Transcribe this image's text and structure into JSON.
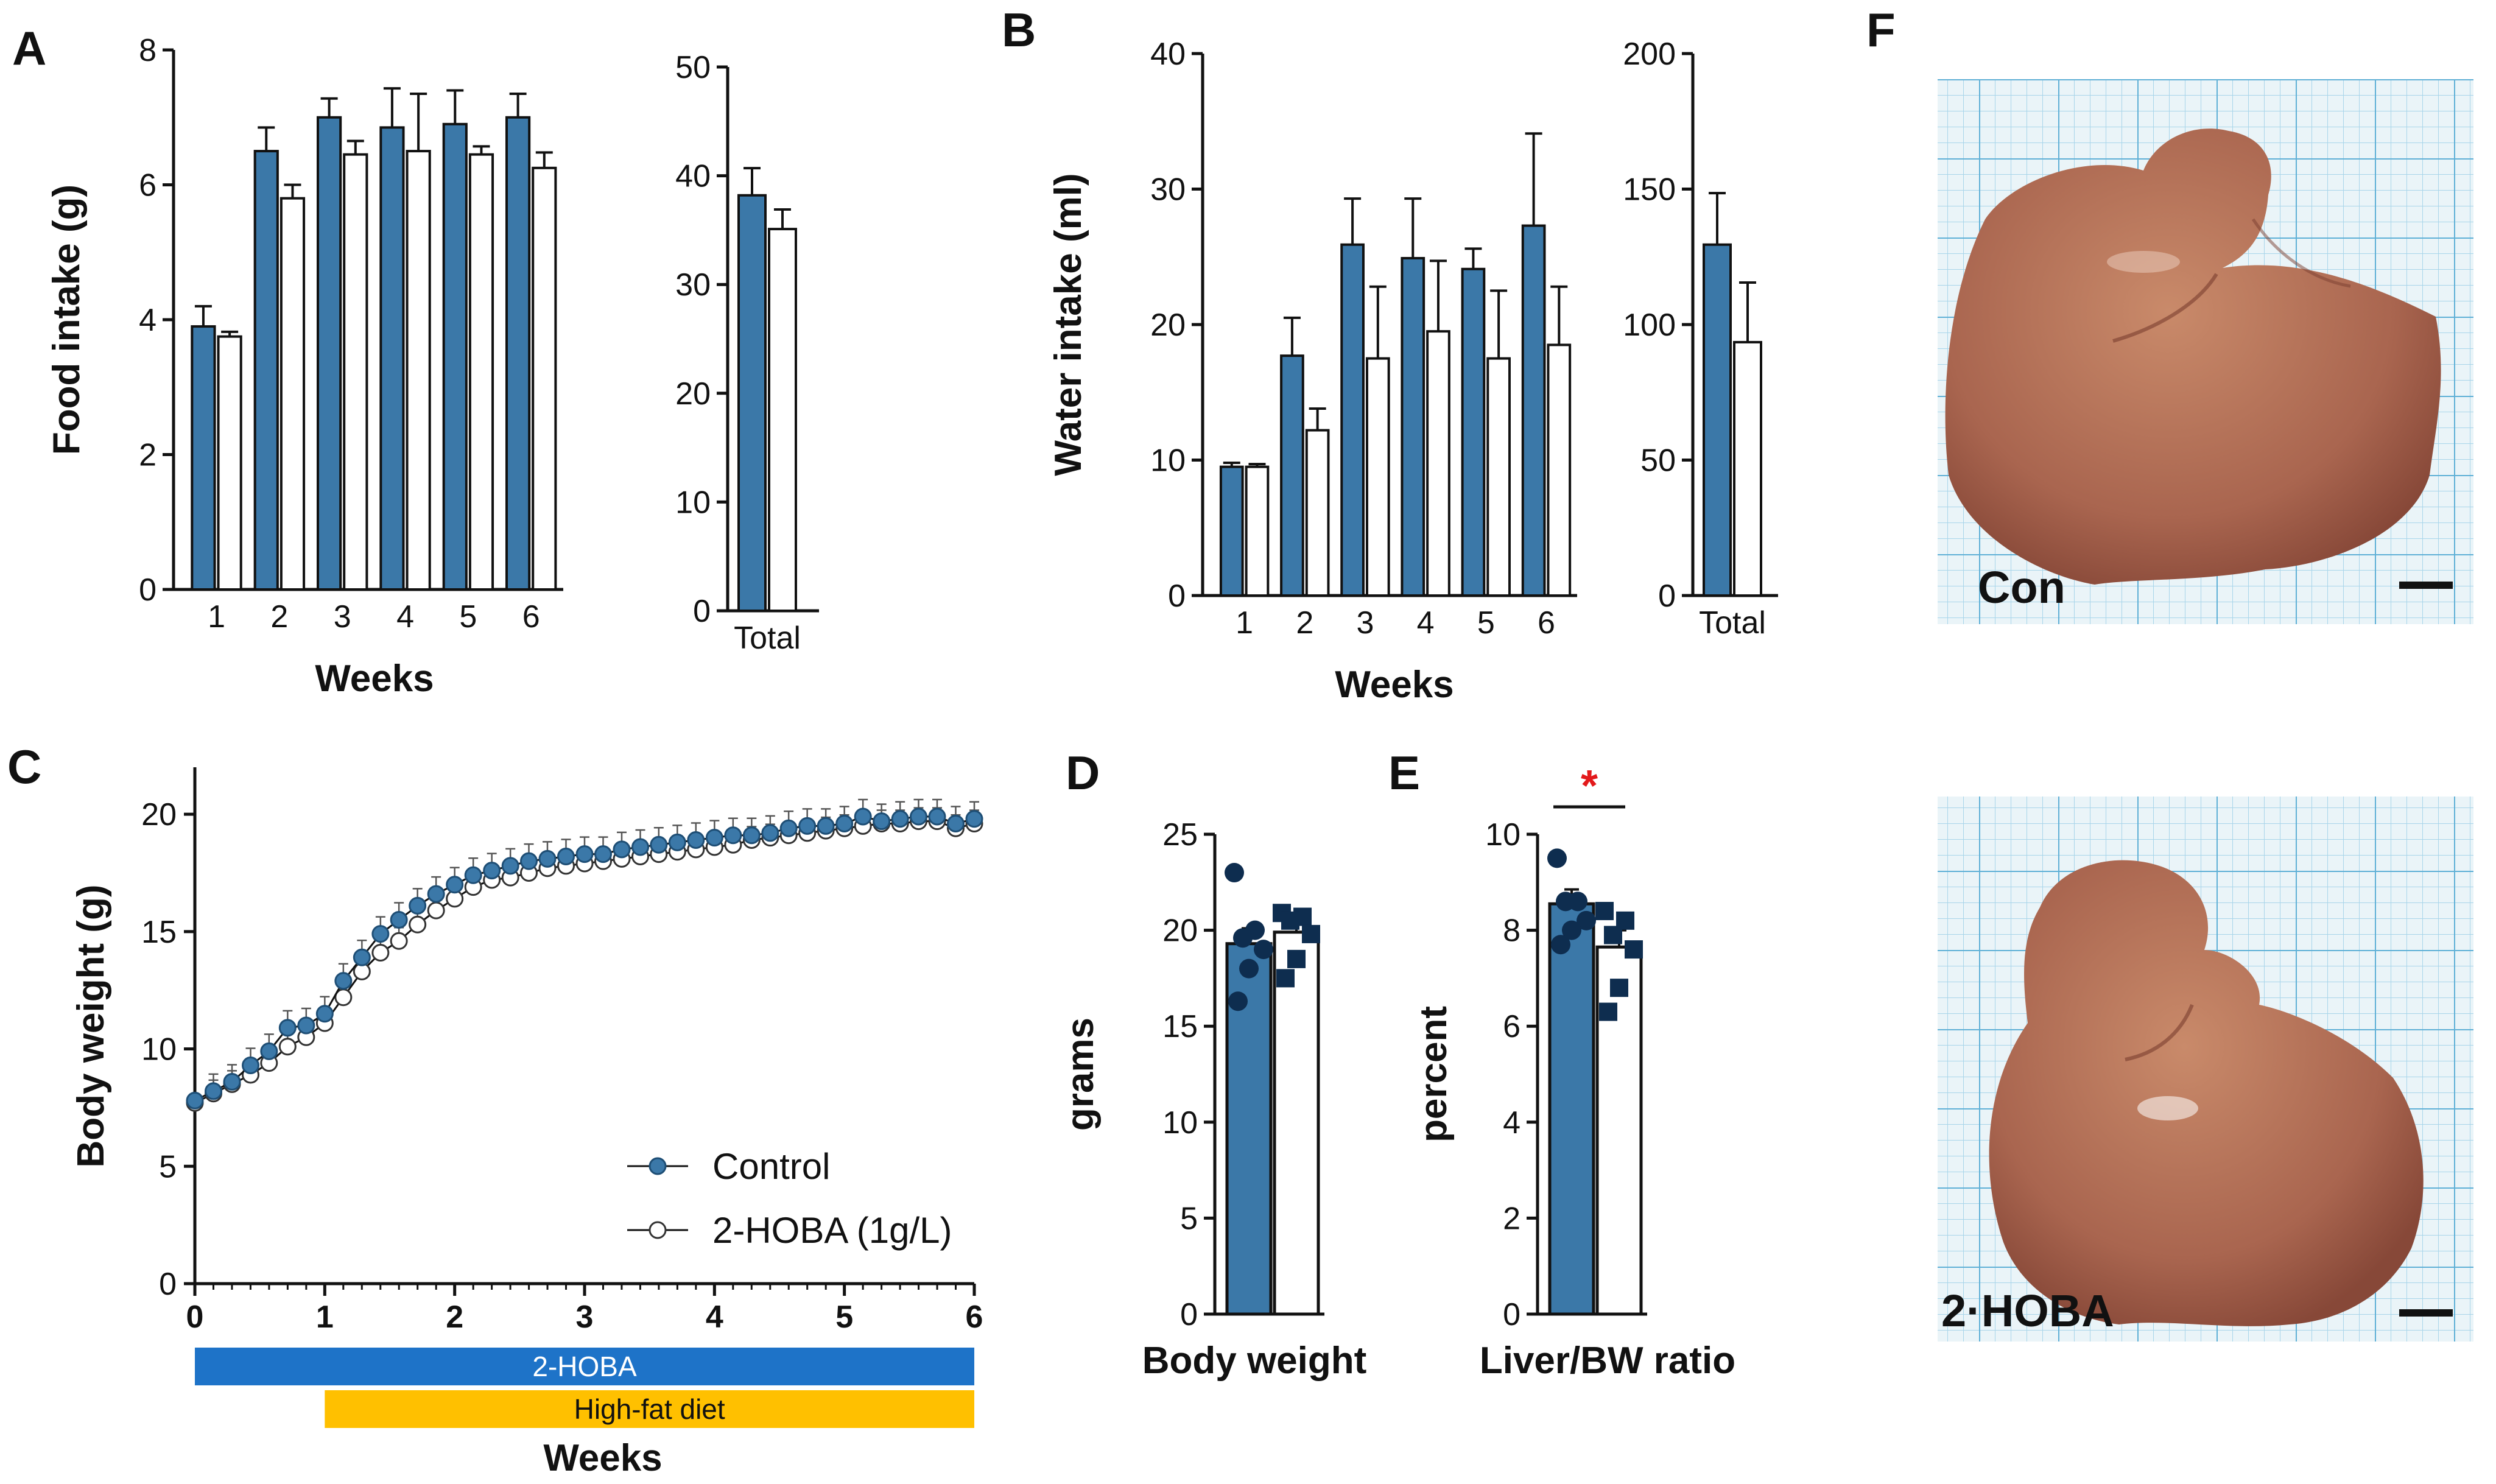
{
  "figure": {
    "panels": {
      "A": "A",
      "B": "B",
      "C": "C",
      "D": "D",
      "E": "E",
      "F": "F"
    }
  },
  "colors": {
    "control": "#3B78A8",
    "treated": "#FFFFFF",
    "axis": "#111111",
    "hoba_bar": "#1E73C8",
    "hfd_bar": "#FFC000",
    "significance": "#E3191B",
    "dark_points": "#0E2D4F",
    "grid_paper": "#D9ECF5",
    "grid_line": "#7FC0DD",
    "liver": "#A9654F"
  },
  "chart_data": [
    {
      "id": "A-weekly",
      "type": "bar",
      "ylabel": "Food intake (g)",
      "xlabel": "Weeks",
      "ylim": [
        0,
        8
      ],
      "yticks": [
        0,
        2,
        4,
        6,
        8
      ],
      "categories": [
        "1",
        "2",
        "3",
        "4",
        "5",
        "6"
      ],
      "series": [
        {
          "name": "Control",
          "values": [
            3.9,
            6.5,
            7.0,
            6.85,
            6.9,
            7.0
          ],
          "errors": [
            0.3,
            0.35,
            0.28,
            0.58,
            0.5,
            0.35
          ]
        },
        {
          "name": "2-HOBA (1g/L)",
          "values": [
            3.75,
            5.8,
            6.45,
            6.5,
            6.45,
            6.25
          ],
          "errors": [
            0.07,
            0.2,
            0.2,
            0.85,
            0.12,
            0.23
          ]
        }
      ]
    },
    {
      "id": "A-total",
      "type": "bar",
      "ylim": [
        0,
        50
      ],
      "yticks": [
        0,
        10,
        20,
        30,
        40,
        50
      ],
      "categories": [
        "Total"
      ],
      "series": [
        {
          "name": "Control",
          "values": [
            38.2
          ],
          "errors": [
            2.5
          ]
        },
        {
          "name": "2-HOBA (1g/L)",
          "values": [
            35.1
          ],
          "errors": [
            1.8
          ]
        }
      ]
    },
    {
      "id": "B-weekly",
      "type": "bar",
      "ylabel": "Water intake (ml)",
      "xlabel": "Weeks",
      "ylim": [
        0,
        40
      ],
      "yticks": [
        0,
        10,
        20,
        30,
        40
      ],
      "categories": [
        "1",
        "2",
        "3",
        "4",
        "5",
        "6"
      ],
      "series": [
        {
          "name": "Control",
          "values": [
            9.5,
            17.7,
            25.9,
            24.9,
            24.1,
            27.3
          ],
          "errors": [
            0.3,
            2.8,
            3.4,
            4.4,
            1.5,
            6.8
          ]
        },
        {
          "name": "2-HOBA (1g/L)",
          "values": [
            9.5,
            12.2,
            17.5,
            19.5,
            17.5,
            18.5
          ],
          "errors": [
            0.2,
            1.6,
            5.3,
            5.2,
            5.0,
            4.3
          ]
        }
      ]
    },
    {
      "id": "B-total",
      "type": "bar",
      "ylim": [
        0,
        200
      ],
      "yticks": [
        0,
        50,
        100,
        150,
        200
      ],
      "categories": [
        "Total"
      ],
      "series": [
        {
          "name": "Control",
          "values": [
            129.5
          ],
          "errors": [
            19
          ]
        },
        {
          "name": "2-HOBA (1g/L)",
          "values": [
            93.5
          ],
          "errors": [
            22
          ]
        }
      ]
    },
    {
      "id": "C",
      "type": "line",
      "ylabel": "Body weight (g)",
      "xlabel": "Weeks",
      "ylim": [
        0,
        22
      ],
      "yticks": [
        0,
        5,
        10,
        15,
        20
      ],
      "xlim": [
        0,
        6
      ],
      "xticks": [
        0,
        1,
        2,
        3,
        4,
        5,
        6
      ],
      "x": [
        0,
        0.143,
        0.286,
        0.429,
        0.571,
        0.714,
        0.857,
        1.0,
        1.143,
        1.286,
        1.429,
        1.571,
        1.714,
        1.857,
        2.0,
        2.143,
        2.286,
        2.429,
        2.571,
        2.714,
        2.857,
        3.0,
        3.143,
        3.286,
        3.429,
        3.571,
        3.714,
        3.857,
        4.0,
        4.143,
        4.286,
        4.429,
        4.571,
        4.714,
        4.857,
        5.0,
        5.143,
        5.286,
        5.429,
        5.571,
        5.714,
        5.857,
        6.0
      ],
      "series": [
        {
          "name": "Control",
          "values": [
            7.8,
            8.2,
            8.6,
            9.3,
            9.9,
            10.9,
            11.0,
            11.5,
            12.9,
            13.9,
            14.9,
            15.5,
            16.1,
            16.6,
            17.0,
            17.4,
            17.6,
            17.8,
            18.0,
            18.1,
            18.2,
            18.3,
            18.3,
            18.5,
            18.6,
            18.7,
            18.8,
            18.9,
            19.0,
            19.1,
            19.1,
            19.2,
            19.4,
            19.5,
            19.5,
            19.6,
            19.9,
            19.7,
            19.8,
            19.9,
            19.9,
            19.6,
            19.8
          ]
        },
        {
          "name": "2-HOBA (1g/L)",
          "values": [
            7.7,
            8.1,
            8.5,
            8.9,
            9.4,
            10.1,
            10.5,
            11.1,
            12.2,
            13.3,
            14.1,
            14.6,
            15.3,
            15.9,
            16.4,
            16.9,
            17.2,
            17.3,
            17.5,
            17.7,
            17.8,
            17.9,
            18.0,
            18.1,
            18.2,
            18.3,
            18.4,
            18.5,
            18.6,
            18.7,
            18.9,
            19.0,
            19.1,
            19.2,
            19.3,
            19.4,
            19.5,
            19.6,
            19.6,
            19.7,
            19.7,
            19.4,
            19.6
          ]
        }
      ],
      "legend": "bottom-right",
      "timeline": [
        {
          "label": "2-HOBA",
          "start": 0,
          "end": 6
        },
        {
          "label": "High-fat diet",
          "start": 1,
          "end": 6
        }
      ]
    },
    {
      "id": "D",
      "type": "bar",
      "ylabel": "grams",
      "xlabel": "Body weight",
      "ylim": [
        0,
        25
      ],
      "yticks": [
        0,
        5,
        10,
        15,
        20,
        25
      ],
      "series": [
        {
          "name": "Control",
          "value": 19.3,
          "error": 0.8,
          "points": [
            23.0,
            20.0,
            19.6,
            19.0,
            18.0,
            16.3
          ]
        },
        {
          "name": "2-HOBA (1g/L)",
          "value": 19.9,
          "error": 0.6,
          "points": [
            20.9,
            20.7,
            20.5,
            19.8,
            18.5,
            17.5
          ]
        }
      ]
    },
    {
      "id": "E",
      "type": "bar",
      "ylabel": "percent",
      "xlabel": "Liver/BW ratio",
      "ylim": [
        0,
        10
      ],
      "yticks": [
        0,
        2,
        4,
        6,
        8,
        10
      ],
      "series": [
        {
          "name": "Control",
          "value": 8.55,
          "error": 0.3,
          "points": [
            9.5,
            8.6,
            8.6,
            8.2,
            8.0,
            7.7
          ]
        },
        {
          "name": "2-HOBA (1g/L)",
          "value": 7.65,
          "error": 0.35,
          "points": [
            8.4,
            8.2,
            7.9,
            7.6,
            6.8,
            6.3
          ]
        }
      ],
      "significance": "*"
    }
  ],
  "photos": {
    "top": {
      "label": "Con"
    },
    "bottom": {
      "label": "2·HOBA"
    }
  }
}
